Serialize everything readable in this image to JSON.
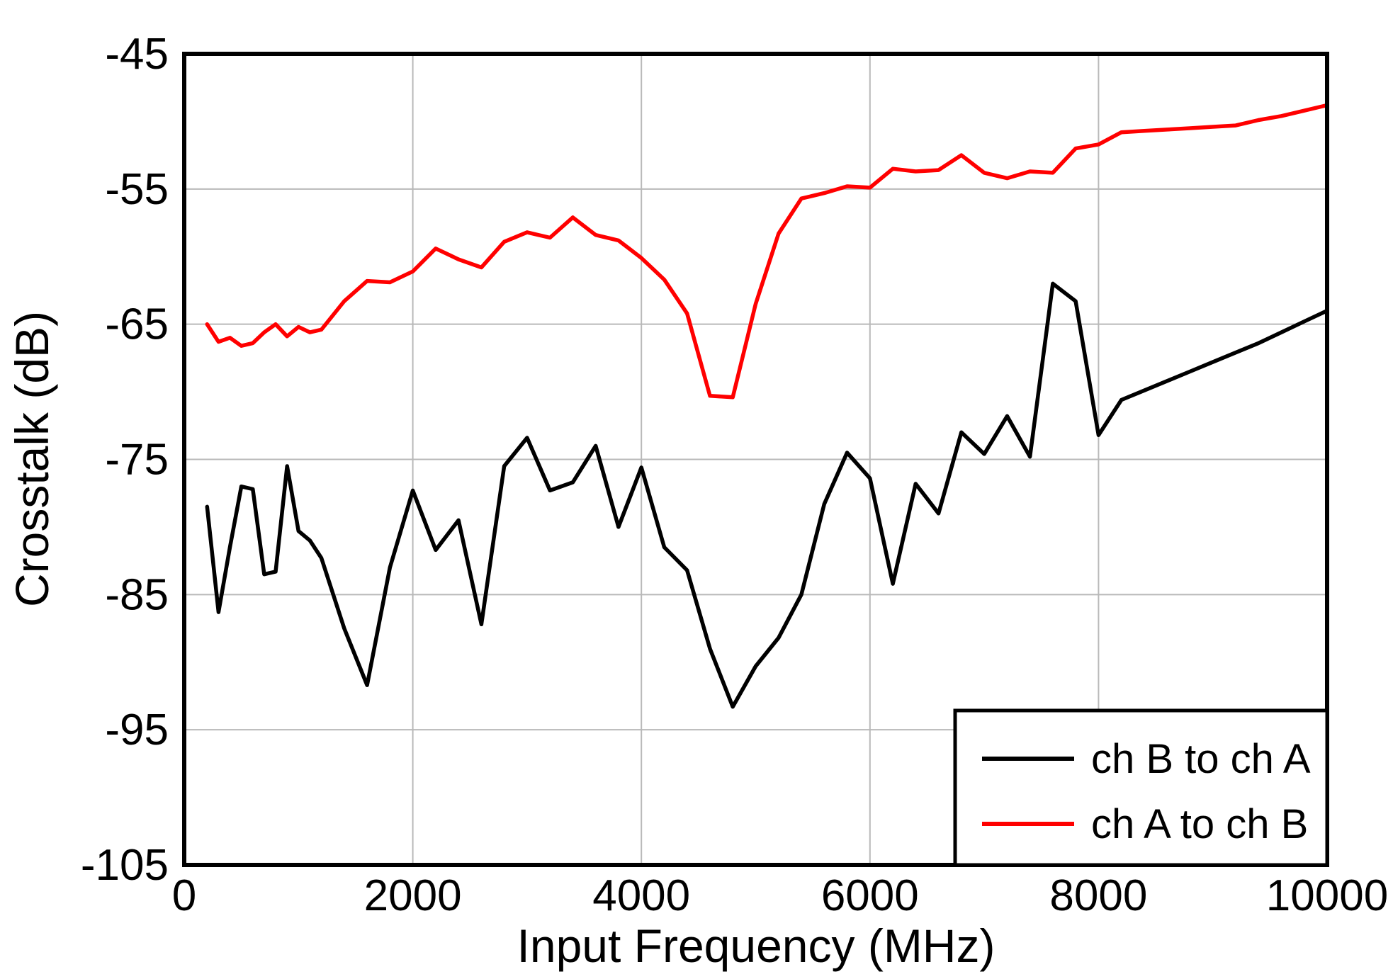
{
  "figure": {
    "background": "#ffffff"
  },
  "chart_data": {
    "type": "line",
    "title": "",
    "xlabel": "Input Frequency  (MHz)",
    "ylabel": "Crosstalk  (dB)",
    "xlim": [
      0,
      10000
    ],
    "ylim": [
      -105,
      -45
    ],
    "xticks": [
      0,
      2000,
      4000,
      6000,
      8000,
      10000
    ],
    "yticks": [
      -105,
      -95,
      -85,
      -75,
      -65,
      -55,
      -45
    ],
    "grid": true,
    "legend_position": "lower right",
    "frame_color": "#000000",
    "grid_color": "#b9b9b9",
    "x": [
      200,
      300,
      400,
      500,
      600,
      700,
      800,
      900,
      1000,
      1100,
      1200,
      1400,
      1600,
      1800,
      2000,
      2200,
      2400,
      2600,
      2800,
      3000,
      3200,
      3400,
      3600,
      3800,
      4000,
      4200,
      4400,
      4600,
      4800,
      5000,
      5200,
      5400,
      5600,
      5800,
      6000,
      6200,
      6400,
      6600,
      6800,
      7000,
      7200,
      7400,
      7600,
      7800,
      8000,
      8200,
      8400,
      8600,
      8800,
      9000,
      9200,
      9400,
      9600,
      9800,
      10000
    ],
    "series": [
      {
        "name": "ch B to ch A",
        "color": "#000000",
        "values": [
          -78.5,
          -86.3,
          -81.5,
          -77.0,
          -77.2,
          -83.5,
          -83.3,
          -75.5,
          -80.3,
          -81.0,
          -82.3,
          -87.5,
          -91.7,
          -83.0,
          -77.3,
          -81.7,
          -79.5,
          -87.2,
          -75.5,
          -73.4,
          -77.3,
          -76.7,
          -74.0,
          -80.0,
          -75.6,
          -81.5,
          -83.2,
          -89.0,
          -93.3,
          -90.3,
          -88.2,
          -85.0,
          -78.3,
          -74.5,
          -76.4,
          -84.2,
          -76.8,
          -79.0,
          -73.0,
          -74.6,
          -71.8,
          -74.8,
          -62.0,
          -63.3,
          -73.2,
          -70.6,
          -69.9,
          -69.2,
          -68.5,
          -67.8,
          -67.1,
          -66.4,
          -65.6,
          -64.8,
          -64.0
        ]
      },
      {
        "name": "ch A to ch B",
        "color": "#ff0000",
        "values": [
          -65.0,
          -66.3,
          -66.0,
          -66.6,
          -66.4,
          -65.6,
          -65.0,
          -65.9,
          -65.2,
          -65.6,
          -65.4,
          -63.3,
          -61.8,
          -61.9,
          -61.1,
          -59.4,
          -60.2,
          -60.8,
          -58.9,
          -58.2,
          -58.6,
          -57.1,
          -58.4,
          -58.8,
          -60.1,
          -61.7,
          -64.2,
          -70.3,
          -70.4,
          -63.5,
          -58.3,
          -55.7,
          -55.3,
          -54.8,
          -54.9,
          -53.5,
          -53.7,
          -53.6,
          -52.5,
          -53.8,
          -54.2,
          -53.7,
          -53.8,
          -52.0,
          -51.7,
          -50.8,
          -50.7,
          -50.6,
          -50.5,
          -50.4,
          -50.3,
          -49.9,
          -49.6,
          -49.2,
          -48.8
        ]
      }
    ]
  }
}
